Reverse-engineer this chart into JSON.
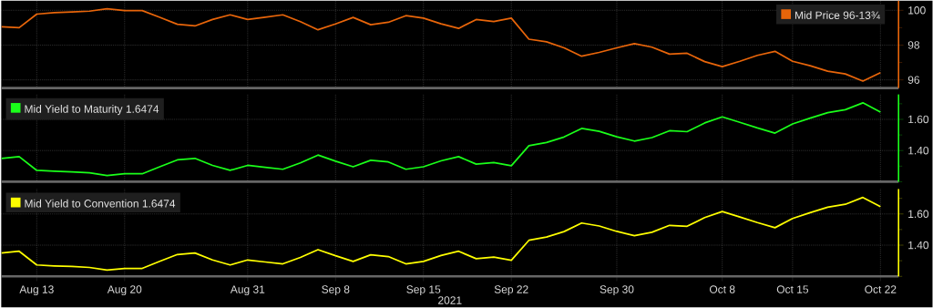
{
  "chart_data": [
    {
      "type": "line",
      "categories": [
        null,
        null,
        null,
        null,
        null,
        null,
        null,
        null,
        null,
        null,
        null,
        null,
        null,
        null,
        null,
        null,
        null,
        null,
        null,
        null,
        null,
        null,
        null,
        null,
        null,
        null,
        null,
        null,
        null,
        null,
        null,
        null,
        null,
        null,
        null,
        null,
        null,
        null,
        null,
        null,
        null,
        null,
        null,
        null,
        null,
        null,
        null,
        null,
        null,
        null,
        null
      ],
      "series": [
        {
          "name": "Mid Price 96-13¾",
          "color": "#e8650a",
          "values": [
            99.05,
            99.0,
            99.78,
            99.87,
            99.9,
            99.95,
            100.09,
            99.98,
            99.98,
            99.6,
            99.2,
            99.1,
            99.47,
            99.74,
            99.47,
            99.6,
            99.74,
            99.35,
            98.88,
            99.22,
            99.59,
            99.17,
            99.31,
            99.69,
            99.55,
            99.22,
            98.96,
            99.47,
            99.35,
            99.55,
            98.34,
            98.19,
            97.84,
            97.36,
            97.58,
            97.84,
            98.08,
            97.88,
            97.48,
            97.53,
            97.05,
            96.76,
            97.07,
            97.41,
            97.64,
            97.07,
            96.81,
            96.5,
            96.34,
            95.93,
            96.41
          ]
        }
      ],
      "ylim": [
        95.53,
        100.55
      ],
      "yticks": [
        {
          "value": 96,
          "label": "96"
        },
        {
          "value": 97,
          "label": null
        },
        {
          "value": 98,
          "label": "98"
        },
        {
          "value": 99,
          "label": null
        },
        {
          "value": 100,
          "label": "100"
        }
      ],
      "grid": true,
      "legend": "top right",
      "tick_labels": "y"
    },
    {
      "type": "line",
      "categories": [
        null,
        null,
        null,
        null,
        null,
        null,
        null,
        null,
        null,
        null,
        null,
        null,
        null,
        null,
        null,
        null,
        null,
        null,
        null,
        null,
        null,
        null,
        null,
        null,
        null,
        null,
        null,
        null,
        null,
        null,
        null,
        null,
        null,
        null,
        null,
        null,
        null,
        null,
        null,
        null,
        null,
        null,
        null,
        null,
        null,
        null,
        null,
        null,
        null,
        null,
        null
      ],
      "series": [
        {
          "name": "Mid Yield to Maturity 1.6474",
          "color": "#1aff1a",
          "values": [
            1.35,
            1.361,
            1.273,
            1.267,
            1.263,
            1.257,
            1.24,
            1.251,
            1.251,
            1.296,
            1.34,
            1.35,
            1.305,
            1.273,
            1.305,
            1.292,
            1.28,
            1.321,
            1.371,
            1.332,
            1.296,
            1.338,
            1.327,
            1.28,
            1.296,
            1.334,
            1.361,
            1.313,
            1.323,
            1.303,
            1.431,
            1.452,
            1.487,
            1.542,
            1.523,
            1.488,
            1.461,
            1.483,
            1.527,
            1.521,
            1.577,
            1.616,
            1.581,
            1.545,
            1.512,
            1.571,
            1.608,
            1.643,
            1.662,
            1.706,
            1.647
          ]
        }
      ],
      "ylim": [
        1.2,
        1.76
      ],
      "yticks": [
        {
          "value": 1.2,
          "label": null
        },
        {
          "value": 1.3,
          "label": null
        },
        {
          "value": 1.4,
          "label": "1.40"
        },
        {
          "value": 1.5,
          "label": null
        },
        {
          "value": 1.6,
          "label": "1.60"
        },
        {
          "value": 1.7,
          "label": null
        }
      ],
      "grid": true,
      "legend": "top left",
      "tick_labels": "y"
    },
    {
      "type": "line",
      "categories": [
        null,
        null,
        "Aug 13",
        null,
        null,
        null,
        null,
        "Aug 20",
        null,
        null,
        null,
        null,
        null,
        null,
        "Aug 31",
        null,
        null,
        null,
        null,
        "Sep 8",
        null,
        null,
        null,
        null,
        "Sep 15",
        null,
        null,
        null,
        null,
        "Sep 22",
        null,
        null,
        null,
        null,
        null,
        "Sep 30",
        null,
        null,
        null,
        null,
        null,
        "Oct 8",
        null,
        null,
        null,
        "Oct 15",
        null,
        null,
        null,
        null,
        "Oct 22"
      ],
      "series": [
        {
          "name": "Mid Yield to Convention 1.6474",
          "color": "#ffff00",
          "values": [
            1.35,
            1.361,
            1.273,
            1.267,
            1.263,
            1.257,
            1.24,
            1.251,
            1.251,
            1.296,
            1.34,
            1.35,
            1.305,
            1.273,
            1.305,
            1.292,
            1.28,
            1.321,
            1.371,
            1.332,
            1.296,
            1.338,
            1.327,
            1.28,
            1.296,
            1.334,
            1.361,
            1.313,
            1.323,
            1.303,
            1.431,
            1.452,
            1.487,
            1.542,
            1.523,
            1.488,
            1.461,
            1.483,
            1.527,
            1.521,
            1.577,
            1.616,
            1.581,
            1.545,
            1.512,
            1.571,
            1.608,
            1.643,
            1.662,
            1.706,
            1.647
          ]
        }
      ],
      "ylim": [
        1.2,
        1.76
      ],
      "yticks": [
        {
          "value": 1.2,
          "label": null
        },
        {
          "value": 1.3,
          "label": null
        },
        {
          "value": 1.4,
          "label": "1.40"
        },
        {
          "value": 1.5,
          "label": null
        },
        {
          "value": 1.6,
          "label": "1.60"
        },
        {
          "value": 1.7,
          "label": null
        }
      ],
      "grid": true,
      "legend": "top left",
      "xlabel": "2021"
    }
  ]
}
